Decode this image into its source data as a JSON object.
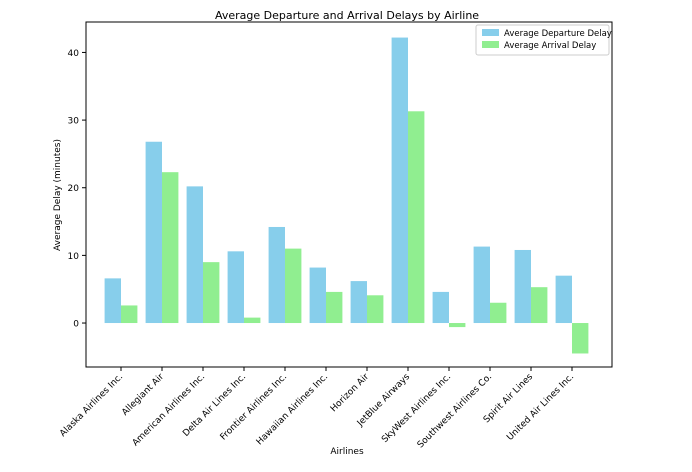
{
  "chart_data": {
    "type": "bar",
    "title": "Average Departure and Arrival Delays by Airline",
    "xlabel": "Airlines",
    "ylabel": "Average Delay (minutes)",
    "ylim": [
      -6.5,
      44.5
    ],
    "yticks": [
      0,
      10,
      20,
      30,
      40
    ],
    "grid": false,
    "legend_position": "top-right",
    "categories": [
      "Alaska Airlines Inc.",
      "Allegiant Air",
      "American Airlines Inc.",
      "Delta Air Lines Inc.",
      "Frontier Airlines Inc.",
      "Hawaiian Airlines Inc.",
      "Horizon Air",
      "JetBlue Airways",
      "SkyWest Airlines Inc.",
      "Southwest Airlines Co.",
      "Spirit Air Lines",
      "United Air Lines Inc."
    ],
    "series": [
      {
        "name": "Average Departure Delay",
        "color": "#87ceeb",
        "values": [
          6.6,
          26.8,
          20.2,
          10.6,
          14.2,
          8.2,
          6.2,
          42.2,
          4.6,
          11.3,
          10.8,
          7.0
        ]
      },
      {
        "name": "Average Arrival Delay",
        "color": "#90ee90",
        "values": [
          2.6,
          22.3,
          9.0,
          0.8,
          11.0,
          4.6,
          4.1,
          31.3,
          -0.6,
          3.0,
          5.3,
          -4.5
        ]
      }
    ]
  }
}
